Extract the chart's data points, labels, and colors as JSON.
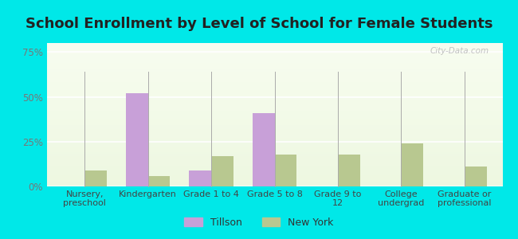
{
  "title": "School Enrollment by Level of School for Female Students",
  "categories": [
    "Nursery,\npreschool",
    "Kindergarten",
    "Grade 1 to 4",
    "Grade 5 to 8",
    "Grade 9 to\n12",
    "College\nundergrad",
    "Graduate or\nprofessional"
  ],
  "tillson": [
    0,
    52,
    9,
    41,
    0,
    0,
    0
  ],
  "newyork": [
    9,
    6,
    17,
    18,
    18,
    24,
    11
  ],
  "tillson_color": "#c8a0d8",
  "newyork_color": "#b8c890",
  "background_color": "#00e8e8",
  "ylim": [
    0,
    80
  ],
  "yticks": [
    0,
    25,
    50,
    75
  ],
  "ytick_labels": [
    "0%",
    "25%",
    "50%",
    "75%"
  ],
  "bar_width": 0.35,
  "title_fontsize": 13,
  "legend_labels": [
    "Tillson",
    "New York"
  ],
  "watermark": "City-Data.com"
}
